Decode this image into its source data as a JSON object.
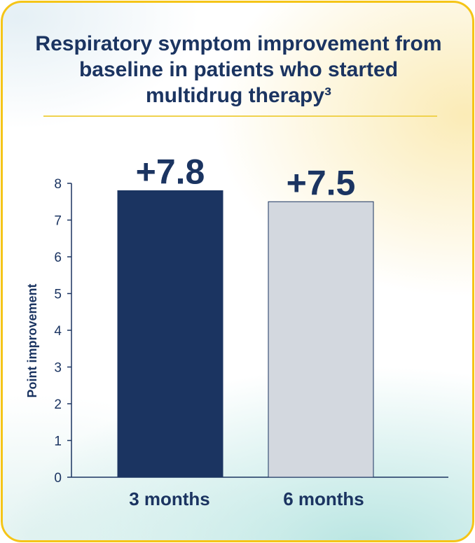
{
  "title": "Respiratory symptom improvement from baseline in patients who started multidrug therapy³",
  "colors": {
    "border": "#f5c518",
    "title": "#1b3461",
    "bar_3_months": "#1b3461",
    "bar_6_months": "#d3d8df"
  },
  "chart_data": {
    "type": "bar",
    "title": "Respiratory symptom improvement from baseline in patients who started multidrug therapy³",
    "xlabel": "",
    "ylabel": "Point improvement",
    "ylim": [
      0,
      8
    ],
    "yticks": [
      "0",
      "1",
      "2",
      "3",
      "4",
      "5",
      "6",
      "7",
      "8"
    ],
    "categories": [
      "3 months",
      "6 months"
    ],
    "values": [
      7.8,
      7.5
    ],
    "data_labels": [
      "+7.8",
      "+7.5"
    ],
    "grid": false,
    "legend": "none"
  }
}
